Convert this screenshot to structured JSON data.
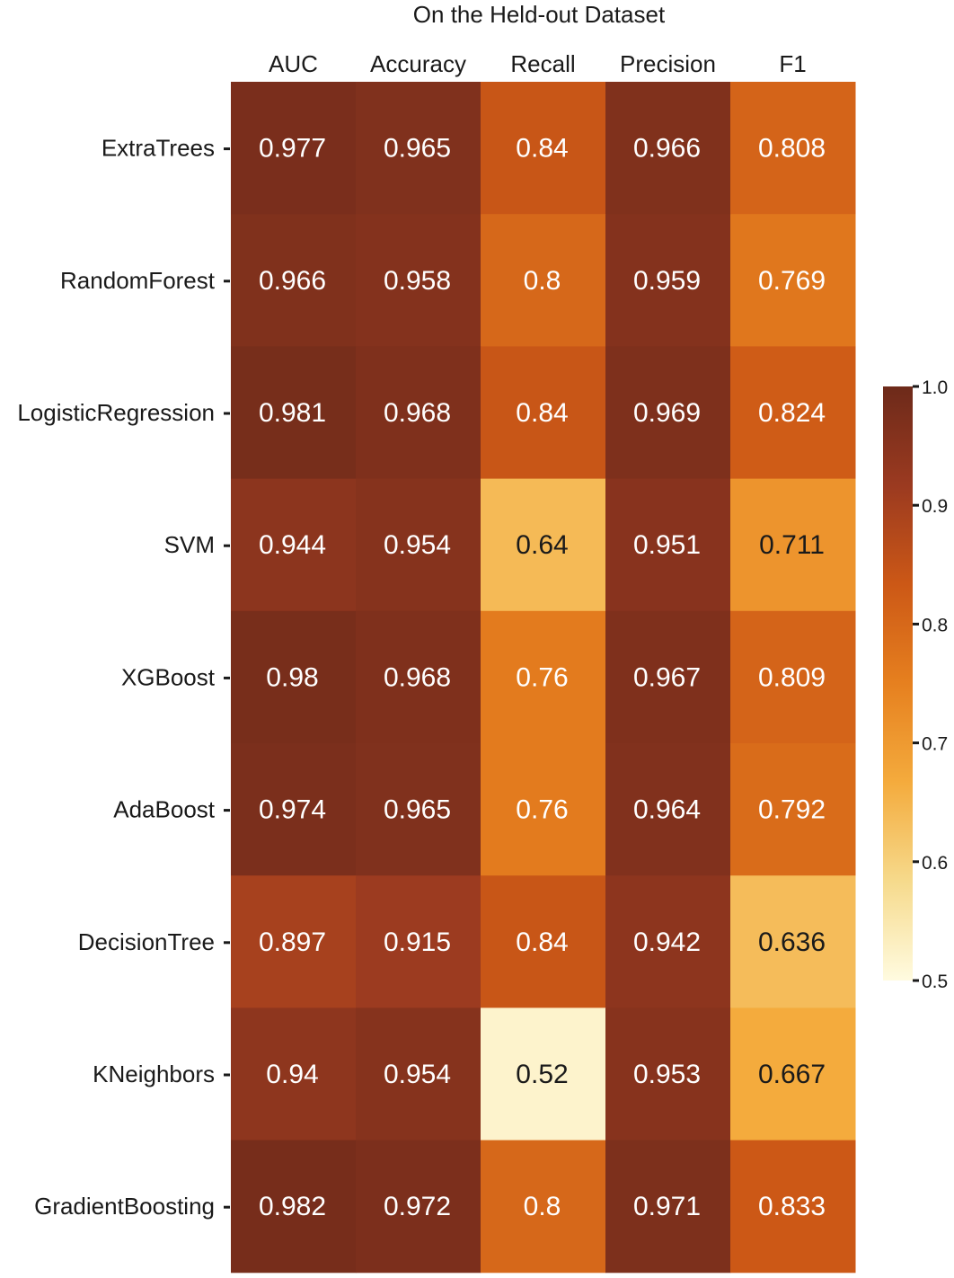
{
  "chart_data": {
    "type": "heatmap",
    "title": "On the Held-out Dataset",
    "columns": [
      "AUC",
      "Accuracy",
      "Recall",
      "Precision",
      "F1"
    ],
    "rows": [
      "ExtraTrees",
      "RandomForest",
      "LogisticRegression",
      "SVM",
      "XGBoost",
      "AdaBoost",
      "DecisionTree",
      "KNeighbors",
      "GradientBoosting"
    ],
    "values": [
      [
        0.977,
        0.965,
        0.84,
        0.966,
        0.808
      ],
      [
        0.966,
        0.958,
        0.8,
        0.959,
        0.769
      ],
      [
        0.981,
        0.968,
        0.84,
        0.969,
        0.824
      ],
      [
        0.944,
        0.954,
        0.64,
        0.951,
        0.711
      ],
      [
        0.98,
        0.968,
        0.76,
        0.967,
        0.809
      ],
      [
        0.974,
        0.965,
        0.76,
        0.964,
        0.792
      ],
      [
        0.897,
        0.915,
        0.84,
        0.942,
        0.636
      ],
      [
        0.94,
        0.954,
        0.52,
        0.953,
        0.667
      ],
      [
        0.982,
        0.972,
        0.8,
        0.971,
        0.833
      ]
    ],
    "colorbar": {
      "vmin": 0.5,
      "vmax": 1.0,
      "ticks": [
        "1.0",
        "0.9",
        "0.8",
        "0.7",
        "0.6",
        "0.5"
      ],
      "colormap": "YlOrBr",
      "stops": [
        "#fffbe0",
        "#f6da8c",
        "#f4ab3d",
        "#e6801f",
        "#cc5816",
        "#9b3a20",
        "#6d2a1a"
      ]
    },
    "text_colors": {
      "light": "#ffffff",
      "dark": "#1a1a1a"
    }
  }
}
